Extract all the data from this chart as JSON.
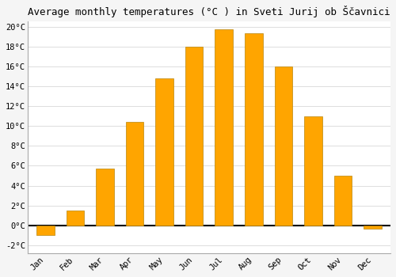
{
  "title": "Average monthly temperatures (°C ) in Sveti Jurij ob Ščavnici",
  "months": [
    "Jan",
    "Feb",
    "Mar",
    "Apr",
    "May",
    "Jun",
    "Jul",
    "Aug",
    "Sep",
    "Oct",
    "Nov",
    "Dec"
  ],
  "values": [
    -1.0,
    1.5,
    5.7,
    10.4,
    14.8,
    18.0,
    19.7,
    19.3,
    16.0,
    11.0,
    5.0,
    -0.3
  ],
  "bar_color": "#FFA500",
  "bar_edge_color": "#b8860b",
  "background_color": "#f5f5f5",
  "plot_bg_color": "#ffffff",
  "ylim_min": -2.8,
  "ylim_max": 20.5,
  "yticks": [
    -2,
    0,
    2,
    4,
    6,
    8,
    10,
    12,
    14,
    16,
    18,
    20
  ],
  "ytick_labels": [
    "-2°C",
    "0°C",
    "2°C",
    "4°C",
    "6°C",
    "8°C",
    "10°C",
    "12°C",
    "14°C",
    "16°C",
    "18°C",
    "20°C"
  ],
  "title_fontsize": 9,
  "tick_fontsize": 7.5,
  "grid_color": "#dddddd",
  "bar_width": 0.6
}
